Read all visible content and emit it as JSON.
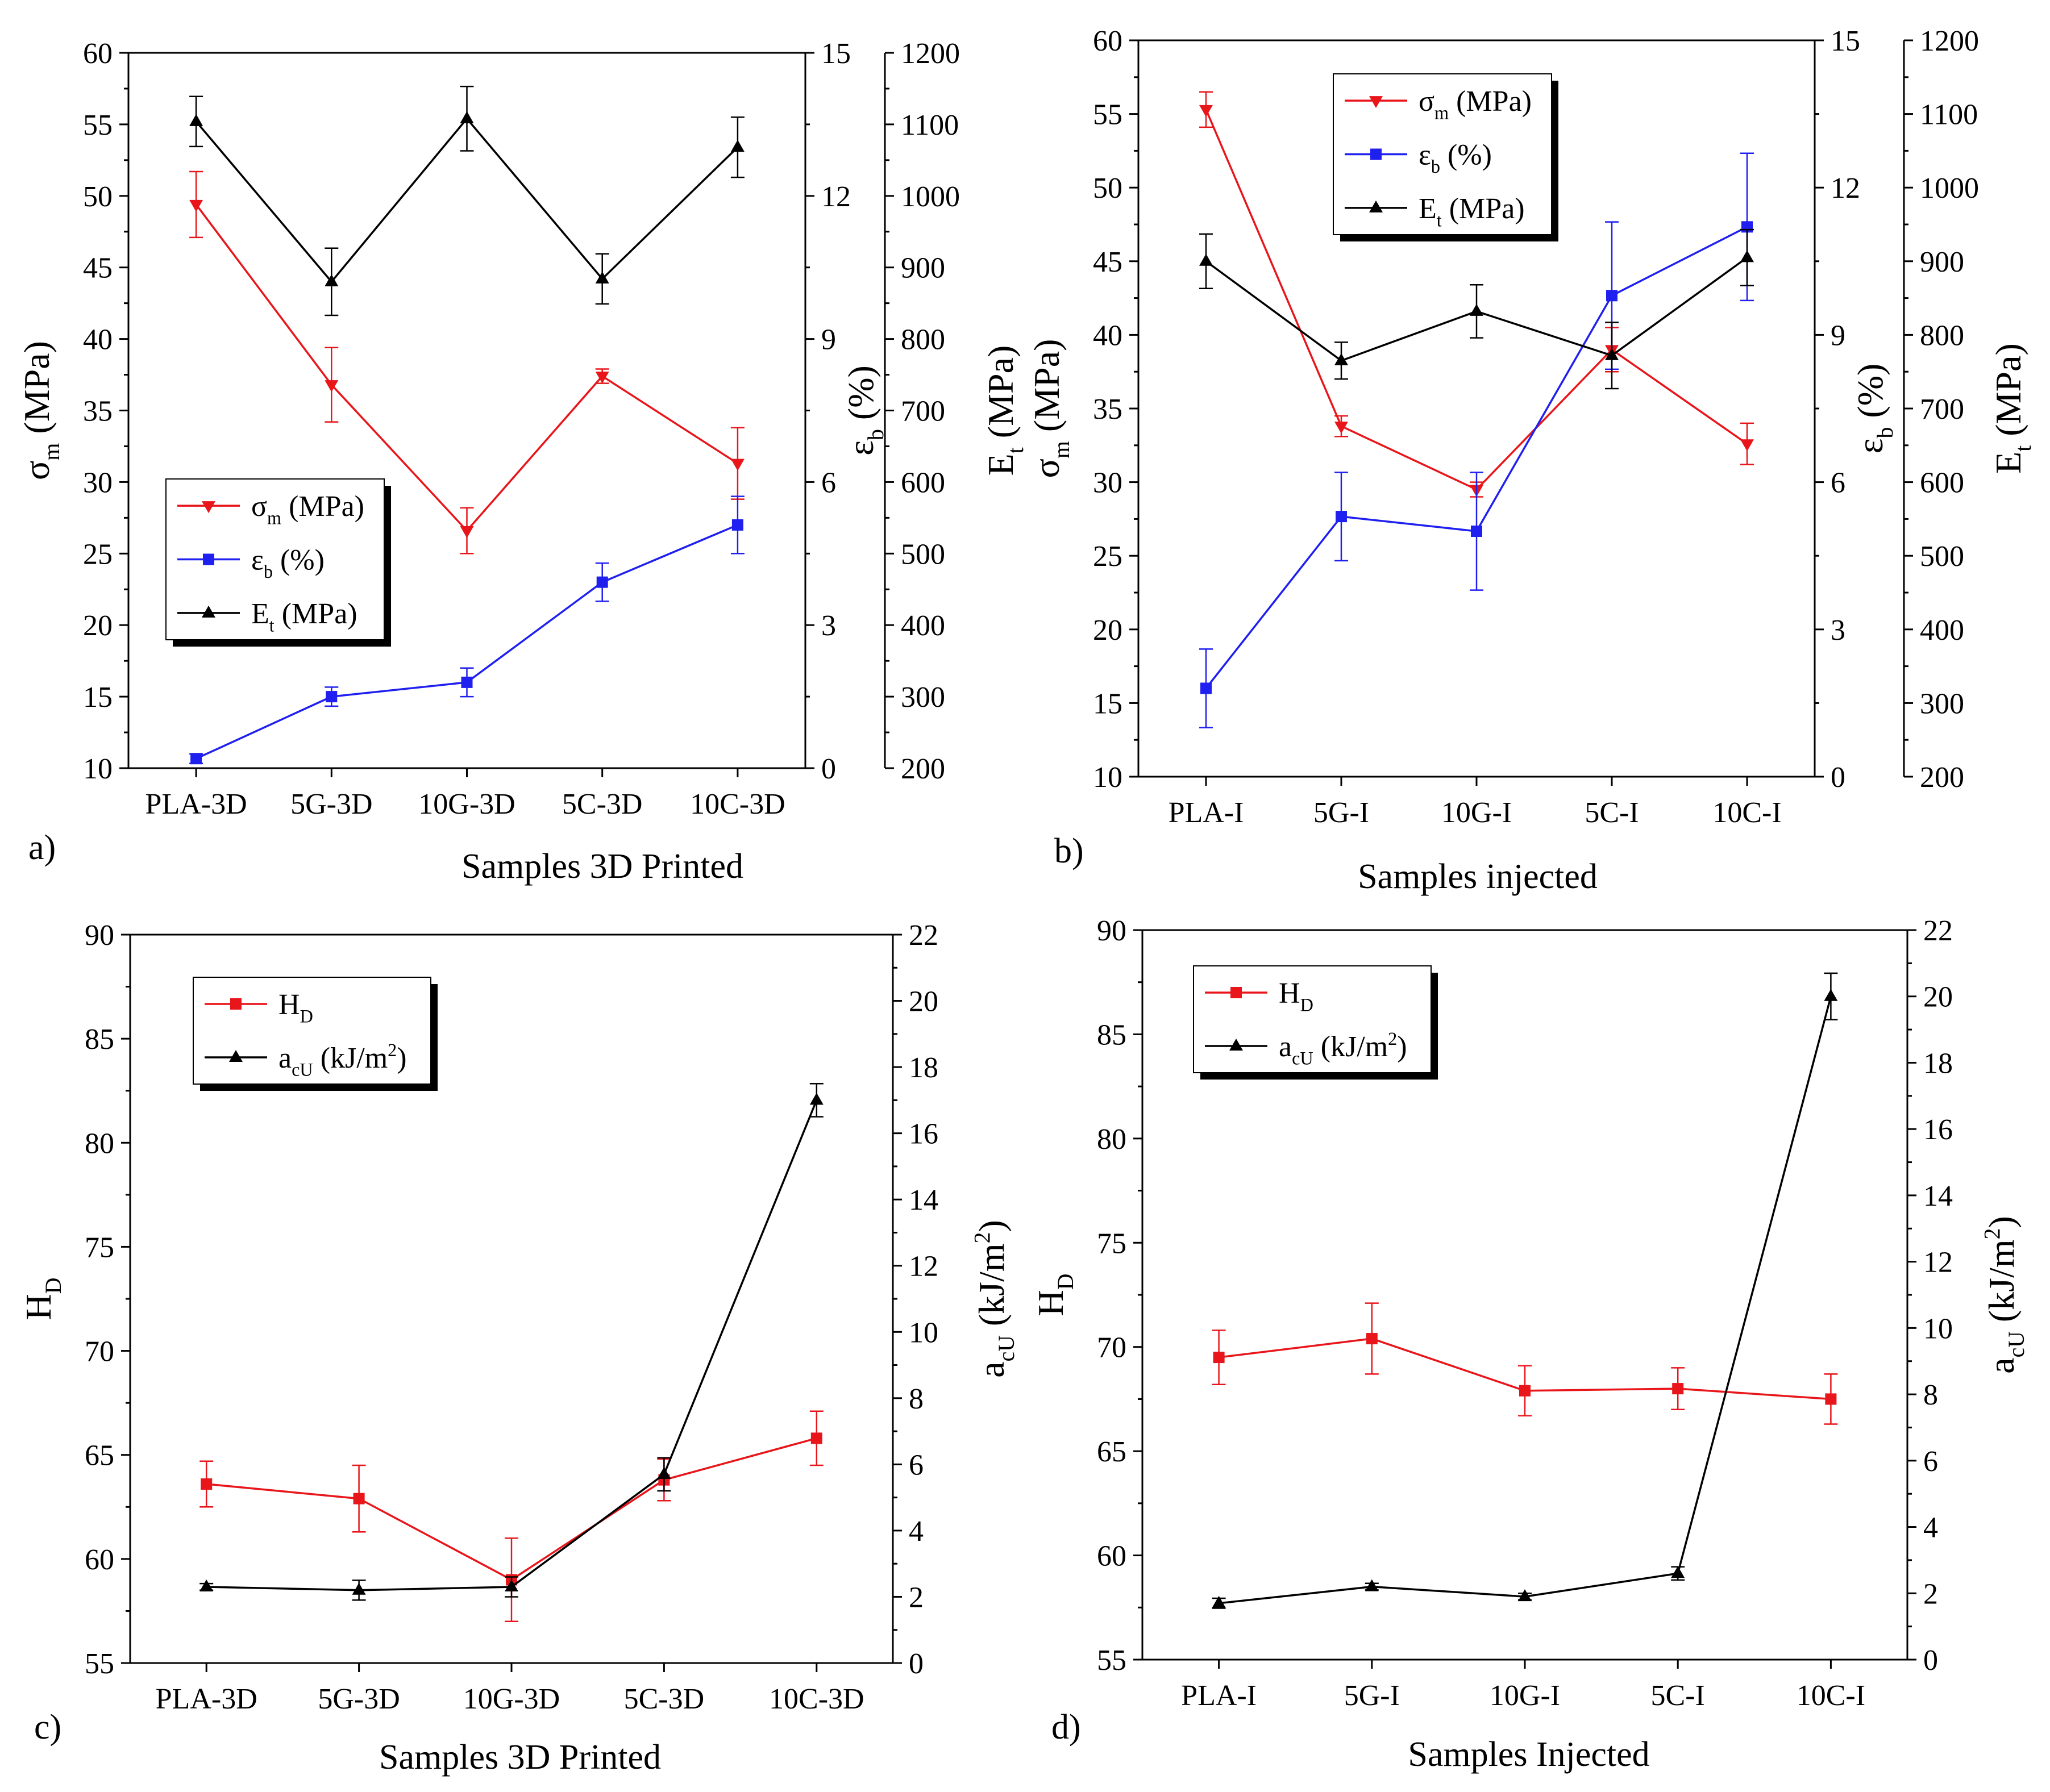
{
  "chart_data": [
    {
      "panel_label": "a)",
      "type": "line",
      "xlabel": "Samples 3D Printed",
      "categories": [
        "PLA-3D",
        "5G-3D",
        "10G-3D",
        "5C-3D",
        "10C-3D"
      ],
      "axes": {
        "left": {
          "label": "σm (MPa)",
          "label_main": "σ",
          "label_sub": "m",
          "label_tail": " (MPa)",
          "min": 10,
          "max": 60,
          "ticks": [
            10,
            15,
            20,
            25,
            30,
            35,
            40,
            45,
            50,
            55,
            60
          ]
        },
        "right1": {
          "label": "εb (%)",
          "label_main": "ε",
          "label_sub": "b",
          "label_tail": " (%)",
          "min": 0,
          "max": 15,
          "ticks": [
            0,
            3,
            6,
            9,
            12,
            15
          ]
        },
        "right2": {
          "label": "Et (MPa)",
          "label_main": "E",
          "label_sub": "t",
          "label_tail": " (MPa)",
          "min": 200,
          "max": 1200,
          "ticks": [
            200,
            300,
            400,
            500,
            600,
            700,
            800,
            900,
            1000,
            1100,
            1200
          ]
        }
      },
      "legend_position": "bottom-left",
      "series": [
        {
          "name": "σm (MPa)",
          "name_main": "σ",
          "name_sub": "m",
          "name_tail": " (MPa)",
          "axis": "left",
          "color": "#e8161b",
          "marker": "tri-down",
          "values": [
            49.4,
            36.8,
            26.6,
            37.4,
            31.3
          ],
          "err": [
            2.3,
            2.6,
            1.6,
            0.5,
            2.5
          ]
        },
        {
          "name": "εb (%)",
          "name_main": "ε",
          "name_sub": "b",
          "name_tail": " (%)",
          "axis": "right1",
          "color": "#1f1ff0",
          "marker": "square",
          "values": [
            0.2,
            1.5,
            1.8,
            3.9,
            5.1
          ],
          "err": [
            0.1,
            0.2,
            0.3,
            0.4,
            0.6
          ]
        },
        {
          "name": "Et (MPa)",
          "name_main": "E",
          "name_sub": "t",
          "name_tail": " (MPa)",
          "axis": "right2",
          "color": "#000000",
          "marker": "tri-up",
          "values": [
            1104,
            880,
            1108,
            884,
            1068
          ],
          "err": [
            35,
            47,
            45,
            35,
            42
          ]
        }
      ]
    },
    {
      "panel_label": "b)",
      "type": "line",
      "xlabel": "Samples injected",
      "categories": [
        "PLA-I",
        "5G-I",
        "10G-I",
        "5C-I",
        "10C-I"
      ],
      "axes": {
        "left": {
          "label": "σm (MPa)",
          "label_main": "σ",
          "label_sub": "m",
          "label_tail": " (MPa)",
          "min": 10,
          "max": 60,
          "ticks": [
            10,
            15,
            20,
            25,
            30,
            35,
            40,
            45,
            50,
            55,
            60
          ]
        },
        "right1": {
          "label": "εb (%)",
          "label_main": "ε",
          "label_sub": "b",
          "label_tail": " (%)",
          "min": 0,
          "max": 15,
          "ticks": [
            0,
            3,
            6,
            9,
            12,
            15
          ]
        },
        "right2": {
          "label": "Et (MPa)",
          "label_main": "E",
          "label_sub": "t",
          "label_tail": " (MPa)",
          "min": 200,
          "max": 1200,
          "ticks": [
            200,
            300,
            400,
            500,
            600,
            700,
            800,
            900,
            1000,
            1100,
            1200
          ]
        }
      },
      "legend_position": "top-center",
      "series": [
        {
          "name": "σm (MPa)",
          "name_main": "σ",
          "name_sub": "m",
          "name_tail": " (MPa)",
          "axis": "left",
          "color": "#e8161b",
          "marker": "tri-down",
          "values": [
            55.3,
            33.8,
            29.5,
            39.0,
            32.6
          ],
          "err": [
            1.2,
            0.7,
            0.5,
            1.5,
            1.4
          ]
        },
        {
          "name": "εb (%)",
          "name_main": "ε",
          "name_sub": "b",
          "name_tail": " (%)",
          "axis": "right1",
          "color": "#1f1ff0",
          "marker": "square",
          "values": [
            1.8,
            5.3,
            5.0,
            9.8,
            11.2
          ],
          "err": [
            0.8,
            0.9,
            1.2,
            1.5,
            1.5
          ]
        },
        {
          "name": "Et (MPa)",
          "name_main": "E",
          "name_sub": "t",
          "name_tail": " (MPa)",
          "axis": "right2",
          "color": "#000000",
          "marker": "tri-up",
          "values": [
            900,
            765,
            832,
            772,
            905
          ],
          "err": [
            37,
            25,
            36,
            45,
            38
          ]
        }
      ]
    },
    {
      "panel_label": "c)",
      "type": "line",
      "xlabel": "Samples 3D Printed",
      "categories": [
        "PLA-3D",
        "5G-3D",
        "10G-3D",
        "5C-3D",
        "10C-3D"
      ],
      "axes": {
        "left": {
          "label": "HD",
          "label_main": "H",
          "label_sub": "D",
          "label_tail": "",
          "min": 55,
          "max": 90,
          "ticks": [
            55,
            60,
            65,
            70,
            75,
            80,
            85,
            90
          ]
        },
        "right": {
          "label": "acU (kJ/m2)",
          "label_main": "a",
          "label_sub": "cU",
          "label_tail": " (kJ/m",
          "label_sup": "2",
          "label_end": ")",
          "min": 0,
          "max": 22,
          "ticks": [
            0,
            2,
            4,
            6,
            8,
            10,
            12,
            14,
            16,
            18,
            20,
            22
          ]
        }
      },
      "legend_position": "top-left",
      "series": [
        {
          "name": "HD",
          "name_main": "H",
          "name_sub": "D",
          "name_tail": "",
          "axis": "left",
          "color": "#e8161b",
          "marker": "square",
          "values": [
            63.6,
            62.9,
            59.0,
            63.8,
            65.8
          ],
          "err": [
            1.1,
            1.6,
            2.0,
            1.0,
            1.3
          ]
        },
        {
          "name": "acU (kJ/m2)",
          "name_main": "a",
          "name_sub": "cU",
          "name_tail": " (kJ/m",
          "name_sup": "2",
          "name_end": ")",
          "axis": "right",
          "color": "#000000",
          "marker": "tri-up",
          "values": [
            2.3,
            2.2,
            2.3,
            5.7,
            17.0
          ],
          "err": [
            0.1,
            0.3,
            0.3,
            0.5,
            0.5
          ]
        }
      ]
    },
    {
      "panel_label": "d)",
      "type": "line",
      "xlabel": "Samples Injected",
      "categories": [
        "PLA-I",
        "5G-I",
        "10G-I",
        "5C-I",
        "10C-I"
      ],
      "axes": {
        "left": {
          "label": "HD",
          "label_main": "H",
          "label_sub": "D",
          "label_tail": "",
          "min": 55,
          "max": 90,
          "ticks": [
            55,
            60,
            65,
            70,
            75,
            80,
            85,
            90
          ]
        },
        "right": {
          "label": "acU (kJ/m2)",
          "label_main": "a",
          "label_sub": "cU",
          "label_tail": " (kJ/m",
          "label_sup": "2",
          "label_end": ")",
          "min": 0,
          "max": 22,
          "ticks": [
            0,
            2,
            4,
            6,
            8,
            10,
            12,
            14,
            16,
            18,
            20,
            22
          ]
        }
      },
      "legend_position": "top-left",
      "series": [
        {
          "name": "HD",
          "name_main": "H",
          "name_sub": "D",
          "name_tail": "",
          "axis": "left",
          "color": "#e8161b",
          "marker": "square",
          "values": [
            69.5,
            70.4,
            67.9,
            68.0,
            67.5
          ],
          "err": [
            1.3,
            1.7,
            1.2,
            1.0,
            1.2
          ]
        },
        {
          "name": "acU (kJ/m2)",
          "name_main": "a",
          "name_sub": "cU",
          "name_tail": " (kJ/m",
          "name_sup": "2",
          "name_end": ")",
          "axis": "right",
          "color": "#000000",
          "marker": "tri-up",
          "values": [
            1.7,
            2.2,
            1.9,
            2.6,
            20.0
          ],
          "err": [
            0.15,
            0.1,
            0.1,
            0.2,
            0.7
          ]
        }
      ]
    }
  ]
}
